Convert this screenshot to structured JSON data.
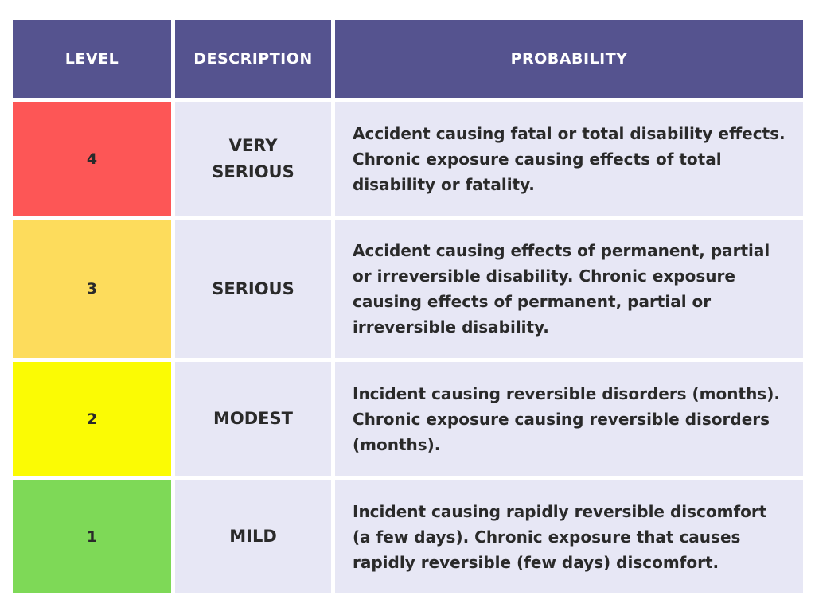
{
  "table": {
    "headers": {
      "level": "LEVEL",
      "description": "DESCRIPTION",
      "probability": "PROBABILITY"
    },
    "rows": [
      {
        "level": "4",
        "description": "VERY SERIOUS",
        "probability": "Accident causing fatal or total disability effects. Chronic exposure causing effects of total disability or fatality.",
        "color": "#fd5656"
      },
      {
        "level": "3",
        "description": "SERIOUS",
        "probability": "Accident causing effects of permanent, partial or irreversible disability. Chronic exposure causing effects of permanent, partial or irreversible disability.",
        "color": "#fddc5c"
      },
      {
        "level": "2",
        "description": "MODEST",
        "probability": "Incident causing reversible disorders (months). Chronic exposure causing reversible disorders (months).",
        "color": "#fbfb04"
      },
      {
        "level": "1",
        "description": "MILD",
        "probability": "Incident causing rapidly reversible discomfort (a few days). Chronic exposure that causes rapidly reversible (few days) discomfort.",
        "color": "#7ed957"
      }
    ]
  }
}
